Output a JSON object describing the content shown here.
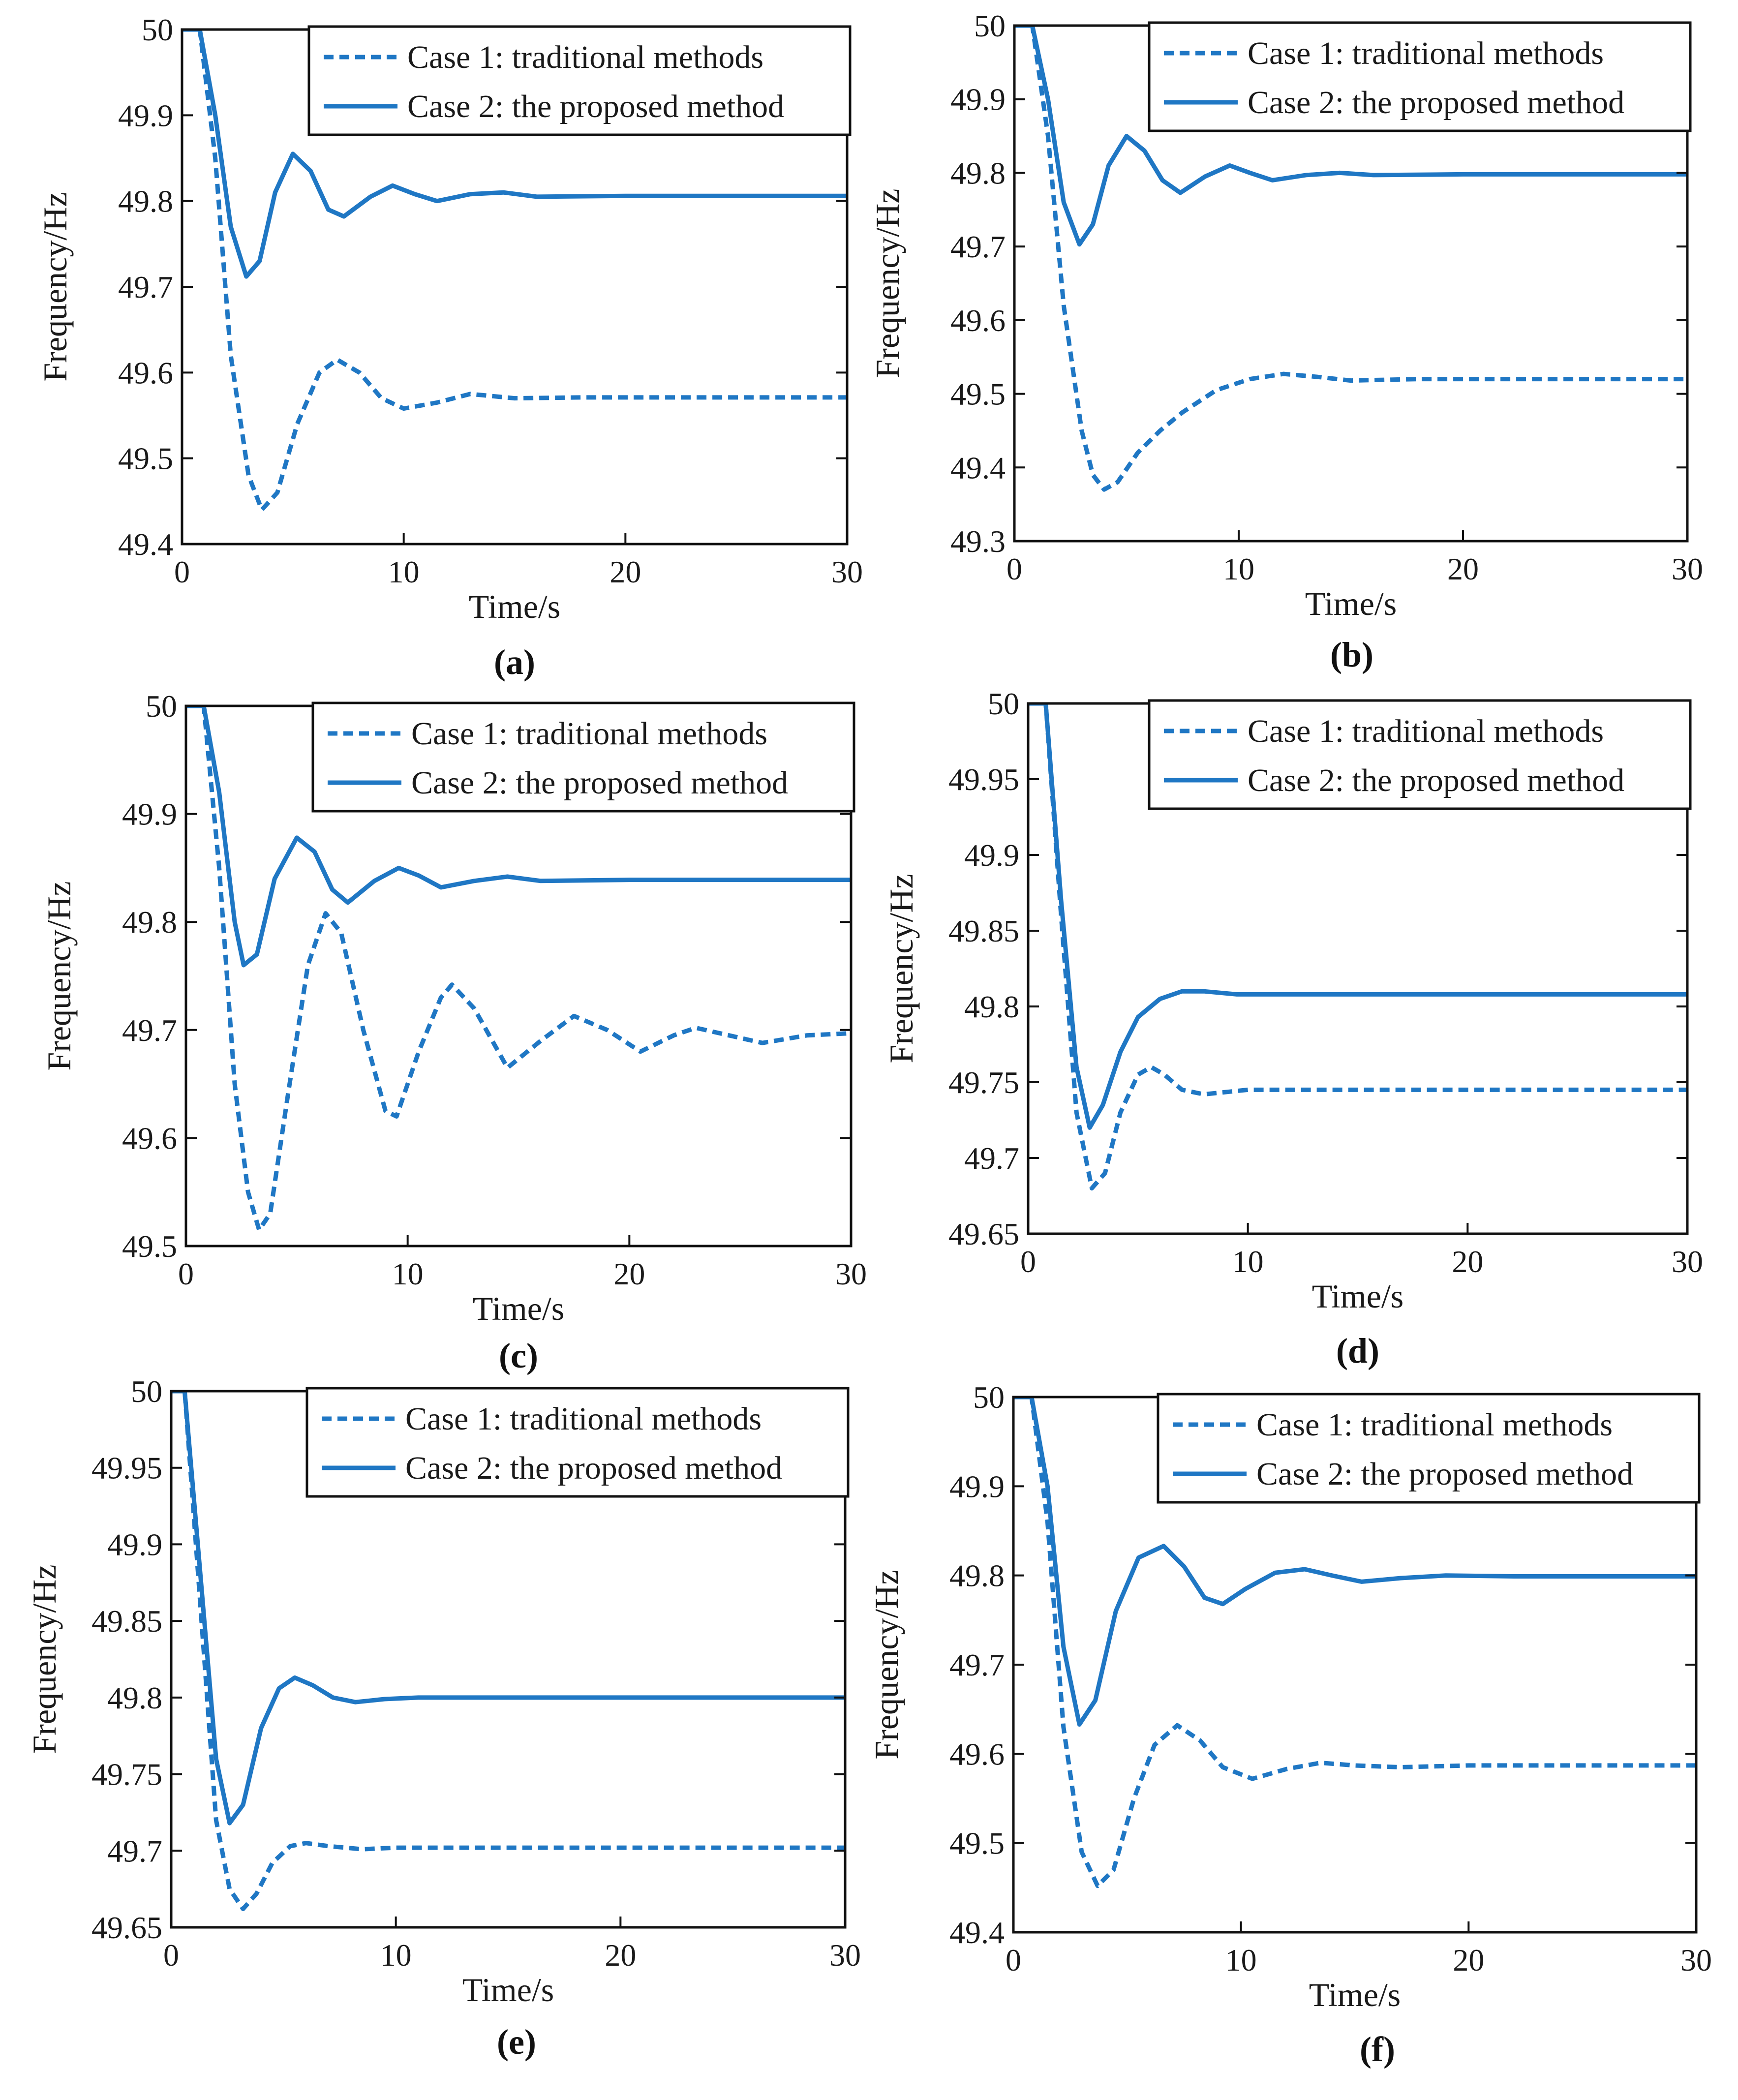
{
  "figure": {
    "line_color": "#1f77c4",
    "axis_color": "#111111"
  },
  "chart_data": [
    {
      "panel": "(a)",
      "type": "line",
      "xlabel": "Time/s",
      "ylabel": "Frequency/Hz",
      "xlim": [
        0,
        30
      ],
      "ylim": [
        49.4,
        50
      ],
      "xticks": [
        "0",
        "10",
        "20",
        "30"
      ],
      "yticks": [
        "49.4",
        "49.5",
        "49.6",
        "49.7",
        "49.8",
        "49.9",
        "50"
      ],
      "legend": "top-right",
      "series": [
        {
          "name": "Case 1: traditional methods",
          "style": "dashed",
          "x": [
            0,
            0.8,
            1.5,
            2.2,
            3.0,
            3.6,
            4.3,
            5.2,
            6.2,
            7.0,
            8.0,
            9.0,
            10.0,
            11.5,
            13.0,
            15.0,
            18.0,
            22.0,
            30.0
          ],
          "y": [
            50,
            50,
            49.85,
            49.62,
            49.48,
            49.44,
            49.46,
            49.54,
            49.6,
            49.615,
            49.6,
            49.57,
            49.558,
            49.565,
            49.575,
            49.57,
            49.571,
            49.571,
            49.571
          ]
        },
        {
          "name": "Case 2: the proposed method",
          "style": "solid",
          "x": [
            0,
            0.8,
            1.5,
            2.2,
            2.9,
            3.5,
            4.2,
            5.0,
            5.8,
            6.6,
            7.3,
            8.5,
            9.5,
            10.5,
            11.5,
            13.0,
            14.5,
            16.0,
            20.0,
            30.0
          ],
          "y": [
            50,
            50,
            49.9,
            49.77,
            49.712,
            49.73,
            49.81,
            49.855,
            49.835,
            49.79,
            49.782,
            49.805,
            49.818,
            49.808,
            49.8,
            49.808,
            49.81,
            49.805,
            49.806,
            49.806
          ]
        }
      ]
    },
    {
      "panel": "(b)",
      "type": "line",
      "xlabel": "Time/s",
      "ylabel": "Frequency/Hz",
      "xlim": [
        0,
        30
      ],
      "ylim": [
        49.3,
        50
      ],
      "xticks": [
        "0",
        "10",
        "20",
        "30"
      ],
      "yticks": [
        "49.3",
        "49.4",
        "49.5",
        "49.6",
        "49.7",
        "49.8",
        "49.9",
        "50"
      ],
      "legend": "top-right",
      "series": [
        {
          "name": "Case 1: traditional methods",
          "style": "dashed",
          "x": [
            0,
            0.8,
            1.5,
            2.2,
            3.0,
            3.5,
            4.0,
            4.6,
            5.5,
            6.5,
            7.5,
            9.0,
            10.5,
            12.0,
            13.5,
            15.0,
            18.0,
            30.0
          ],
          "y": [
            50,
            50,
            49.85,
            49.62,
            49.45,
            49.39,
            49.37,
            49.38,
            49.42,
            49.45,
            49.475,
            49.505,
            49.52,
            49.527,
            49.523,
            49.518,
            49.52,
            49.52
          ]
        },
        {
          "name": "Case 2: the proposed method",
          "style": "solid",
          "x": [
            0,
            0.8,
            1.5,
            2.2,
            2.9,
            3.5,
            4.2,
            5.0,
            5.8,
            6.6,
            7.4,
            8.5,
            9.6,
            10.5,
            11.5,
            13.0,
            14.5,
            16.0,
            20.0,
            30.0
          ],
          "y": [
            50,
            50,
            49.9,
            49.76,
            49.703,
            49.73,
            49.81,
            49.85,
            49.83,
            49.79,
            49.773,
            49.795,
            49.81,
            49.8,
            49.79,
            49.797,
            49.8,
            49.797,
            49.798,
            49.798
          ]
        }
      ]
    },
    {
      "panel": "(c)",
      "type": "line",
      "xlabel": "Time/s",
      "ylabel": "Frequency/Hz",
      "xlim": [
        0,
        30
      ],
      "ylim": [
        49.5,
        50
      ],
      "xticks": [
        "0",
        "10",
        "20",
        "30"
      ],
      "yticks": [
        "49.5",
        "49.6",
        "49.7",
        "49.8",
        "49.9",
        "50"
      ],
      "legend": "top-right",
      "series": [
        {
          "name": "Case 1: traditional methods",
          "style": "dashed",
          "x": [
            0,
            0.8,
            1.5,
            2.2,
            2.8,
            3.3,
            3.8,
            4.6,
            5.5,
            6.3,
            7.0,
            8.0,
            9.0,
            9.5,
            10.5,
            11.5,
            12.0,
            13.0,
            14.5,
            16.0,
            17.5,
            19.0,
            20.5,
            22.0,
            23.0,
            24.5,
            26.0,
            28.0,
            30.0
          ],
          "y": [
            50,
            50,
            49.85,
            49.65,
            49.55,
            49.515,
            49.53,
            49.64,
            49.76,
            49.808,
            49.79,
            49.7,
            49.625,
            49.62,
            49.68,
            49.73,
            49.742,
            49.72,
            49.665,
            49.69,
            49.713,
            49.7,
            49.68,
            49.695,
            49.702,
            49.695,
            49.688,
            49.695,
            49.697
          ]
        },
        {
          "name": "Case 2: the proposed method",
          "style": "solid",
          "x": [
            0,
            0.8,
            1.5,
            2.2,
            2.6,
            3.2,
            4.0,
            5.0,
            5.8,
            6.6,
            7.3,
            8.5,
            9.6,
            10.5,
            11.5,
            13.0,
            14.5,
            16.0,
            20.0,
            30.0
          ],
          "y": [
            50,
            50,
            49.92,
            49.8,
            49.76,
            49.77,
            49.84,
            49.878,
            49.865,
            49.83,
            49.818,
            49.838,
            49.85,
            49.843,
            49.832,
            49.838,
            49.842,
            49.838,
            49.839,
            49.839
          ]
        }
      ]
    },
    {
      "panel": "(d)",
      "type": "line",
      "xlabel": "Time/s",
      "ylabel": "Frequency/Hz",
      "xlim": [
        0,
        30
      ],
      "ylim": [
        49.65,
        50
      ],
      "xticks": [
        "0",
        "10",
        "20",
        "30"
      ],
      "yticks": [
        "49.65",
        "49.7",
        "49.75",
        "49.8",
        "49.85",
        "49.9",
        "49.95",
        "50"
      ],
      "legend": "top-right",
      "series": [
        {
          "name": "Case 1: traditional methods",
          "style": "dashed",
          "x": [
            0,
            0.8,
            1.5,
            2.2,
            2.9,
            3.5,
            4.2,
            5.0,
            5.6,
            6.2,
            7.0,
            8.0,
            10.0,
            14.0,
            30.0
          ],
          "y": [
            50,
            50,
            49.86,
            49.73,
            49.68,
            49.69,
            49.73,
            49.755,
            49.76,
            49.755,
            49.745,
            49.742,
            49.745,
            49.745,
            49.745
          ]
        },
        {
          "name": "Case 2: the proposed method",
          "style": "solid",
          "x": [
            0,
            0.8,
            1.5,
            2.2,
            2.8,
            3.4,
            4.2,
            5.0,
            6.0,
            7.0,
            8.0,
            9.5,
            11.0,
            14.0,
            30.0
          ],
          "y": [
            50,
            50,
            49.87,
            49.76,
            49.72,
            49.735,
            49.77,
            49.793,
            49.805,
            49.81,
            49.81,
            49.808,
            49.808,
            49.808,
            49.808
          ]
        }
      ]
    },
    {
      "panel": "(e)",
      "type": "line",
      "xlabel": "Time/s",
      "ylabel": "Frequency/Hz",
      "xlim": [
        0,
        30
      ],
      "ylim": [
        49.65,
        50
      ],
      "xticks": [
        "0",
        "10",
        "20",
        "30"
      ],
      "yticks": [
        "49.65",
        "49.7",
        "49.75",
        "49.8",
        "49.85",
        "49.9",
        "49.95",
        "50"
      ],
      "legend": "top-right",
      "series": [
        {
          "name": "Case 1: traditional methods",
          "style": "dashed",
          "x": [
            0,
            0.6,
            1.3,
            2.0,
            2.6,
            3.2,
            3.8,
            4.5,
            5.3,
            6.0,
            7.0,
            8.5,
            10.0,
            14.0,
            30.0
          ],
          "y": [
            50,
            50,
            49.86,
            49.72,
            49.675,
            49.662,
            49.672,
            49.692,
            49.703,
            49.705,
            49.703,
            49.701,
            49.702,
            49.702,
            49.702
          ]
        },
        {
          "name": "Case 2: the proposed method",
          "style": "solid",
          "x": [
            0,
            0.6,
            1.3,
            2.0,
            2.6,
            3.2,
            4.0,
            4.8,
            5.5,
            6.3,
            7.2,
            8.2,
            9.5,
            11.0,
            14.0,
            30.0
          ],
          "y": [
            50,
            50,
            49.88,
            49.76,
            49.718,
            49.73,
            49.78,
            49.806,
            49.813,
            49.808,
            49.8,
            49.797,
            49.799,
            49.8,
            49.8,
            49.8
          ]
        }
      ]
    },
    {
      "panel": "(f)",
      "type": "line",
      "xlabel": "Time/s",
      "ylabel": "Frequency/Hz",
      "xlim": [
        0,
        30
      ],
      "ylim": [
        49.4,
        50
      ],
      "xticks": [
        "0",
        "10",
        "20",
        "30"
      ],
      "yticks": [
        "49.4",
        "49.5",
        "49.6",
        "49.7",
        "49.8",
        "49.9",
        "50"
      ],
      "legend": "top-right",
      "series": [
        {
          "name": "Case 1: traditional methods",
          "style": "dashed",
          "x": [
            0,
            0.8,
            1.5,
            2.2,
            3.0,
            3.7,
            4.4,
            5.3,
            6.2,
            7.2,
            8.2,
            9.2,
            10.5,
            12.0,
            13.5,
            15.0,
            17.0,
            20.0,
            30.0
          ],
          "y": [
            50,
            50,
            49.86,
            49.63,
            49.49,
            49.452,
            49.47,
            49.55,
            49.61,
            49.632,
            49.615,
            49.585,
            49.572,
            49.583,
            49.59,
            49.587,
            49.585,
            49.587,
            49.587
          ]
        },
        {
          "name": "Case 2: the proposed method",
          "style": "solid",
          "x": [
            0,
            0.8,
            1.5,
            2.2,
            2.9,
            3.6,
            4.5,
            5.5,
            6.6,
            7.5,
            8.4,
            9.2,
            10.2,
            11.5,
            12.8,
            14.0,
            15.3,
            17.0,
            19.0,
            22.0,
            30.0
          ],
          "y": [
            50,
            50,
            49.9,
            49.72,
            49.633,
            49.66,
            49.76,
            49.82,
            49.833,
            49.81,
            49.775,
            49.768,
            49.785,
            49.803,
            49.807,
            49.8,
            49.793,
            49.797,
            49.8,
            49.799,
            49.799
          ]
        }
      ]
    }
  ]
}
